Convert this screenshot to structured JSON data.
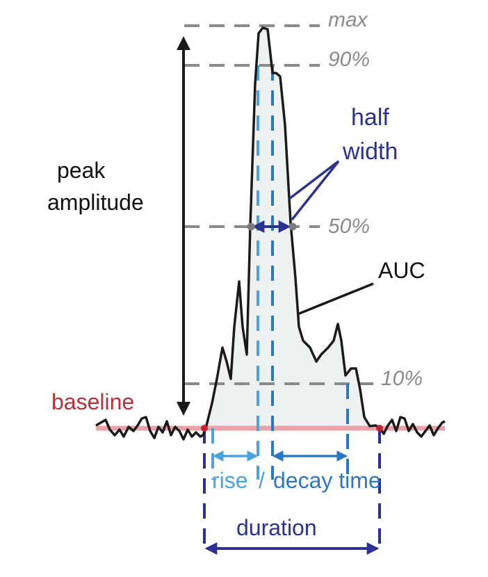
{
  "levels": {
    "max": "max",
    "p90": "90%",
    "p50": "50%",
    "p10": "10%"
  },
  "labels": {
    "peak_line1": "peak",
    "peak_line2": "amplitude",
    "half_line1": "half",
    "half_line2": "width",
    "auc": "AUC",
    "baseline": "baseline",
    "rise": "rise",
    "slash": "/",
    "decay": "decay time",
    "duration": "duration"
  },
  "colors": {
    "trace": "#1a1a1a",
    "baseline": "#e8a3a8",
    "baseline_text": "#b8303a",
    "level_dash": "#8a8a8a",
    "level_text": "#8a8a8a",
    "navy": "#2a3190",
    "light_blue": "#4ba3dc",
    "mid_blue": "#2a78c0",
    "fill": "#eef1f1"
  }
}
